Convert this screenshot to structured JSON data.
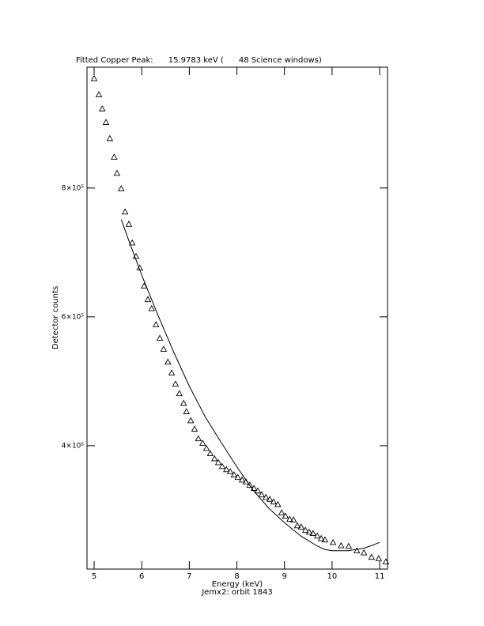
{
  "chart_data": {
    "type": "scatter",
    "title": "Fitted Copper Peak:      15.9783 keV (      48 Science windows)",
    "x_label": "Energy (keV)",
    "subtitle": "Jemx2: orbit 1843",
    "y_label": "Detector counts",
    "xlim": [
      4.85,
      11.165
    ],
    "ylim": [
      208500,
      987500
    ],
    "xticks": [
      5,
      6,
      7,
      8,
      9,
      10,
      11
    ],
    "yticks": [
      {
        "value": 400000,
        "label": "4×10⁵"
      },
      {
        "value": 600000,
        "label": "6×10⁵"
      },
      {
        "value": 800000,
        "label": "8×10⁵"
      }
    ],
    "color": "#000000",
    "series": [
      {
        "mode": "markers",
        "marker": "triangle",
        "x": [
          5.0,
          5.1,
          5.17,
          5.25,
          5.33,
          5.42,
          5.48,
          5.57,
          5.65,
          5.73,
          5.8,
          5.88,
          5.96,
          6.05,
          6.13,
          6.21,
          6.3,
          6.38,
          6.46,
          6.55,
          6.63,
          6.71,
          6.79,
          6.88,
          6.94,
          7.03,
          7.11,
          7.19,
          7.28,
          7.36,
          7.44,
          7.53,
          7.61,
          7.69,
          7.78,
          7.86,
          7.94,
          8.02,
          8.11,
          8.19,
          8.27,
          8.36,
          8.44,
          8.52,
          8.61,
          8.69,
          8.77,
          8.86,
          8.94,
          9.02,
          9.11,
          9.19,
          9.27,
          9.35,
          9.44,
          9.52,
          9.6,
          9.69,
          9.77,
          9.85,
          10.02,
          10.19,
          10.35,
          10.52,
          10.67,
          10.83,
          10.98,
          11.13
        ],
        "values": [
          970000,
          945000,
          923000,
          902000,
          877000,
          848000,
          823000,
          799000,
          763000,
          744000,
          715000,
          694000,
          676000,
          648000,
          627000,
          613000,
          588000,
          567000,
          550000,
          530000,
          513000,
          496000,
          481000,
          466000,
          453000,
          439000,
          426000,
          411000,
          404000,
          396000,
          388000,
          380000,
          374000,
          368000,
          363000,
          360000,
          355000,
          351000,
          347000,
          344000,
          339000,
          334000,
          330000,
          324000,
          320000,
          317000,
          313000,
          309000,
          296000,
          291000,
          286000,
          285000,
          276000,
          274000,
          269000,
          266000,
          264000,
          260000,
          256000,
          254000,
          250000,
          245000,
          244000,
          237000,
          234000,
          227000,
          225000,
          220000
        ]
      },
      {
        "mode": "line",
        "marker": "none",
        "x": [
          5.57,
          5.76,
          6.01,
          6.35,
          6.68,
          7.01,
          7.34,
          7.68,
          8.01,
          8.34,
          8.67,
          9.01,
          9.34,
          9.67,
          9.84,
          10.0,
          10.34,
          10.67,
          10.83,
          11.0
        ],
        "values": [
          751000,
          712000,
          663000,
          601000,
          544000,
          491000,
          444000,
          404000,
          366000,
          331000,
          303000,
          280000,
          260000,
          245000,
          239000,
          237000,
          237000,
          241000,
          245000,
          250000
        ]
      }
    ]
  }
}
